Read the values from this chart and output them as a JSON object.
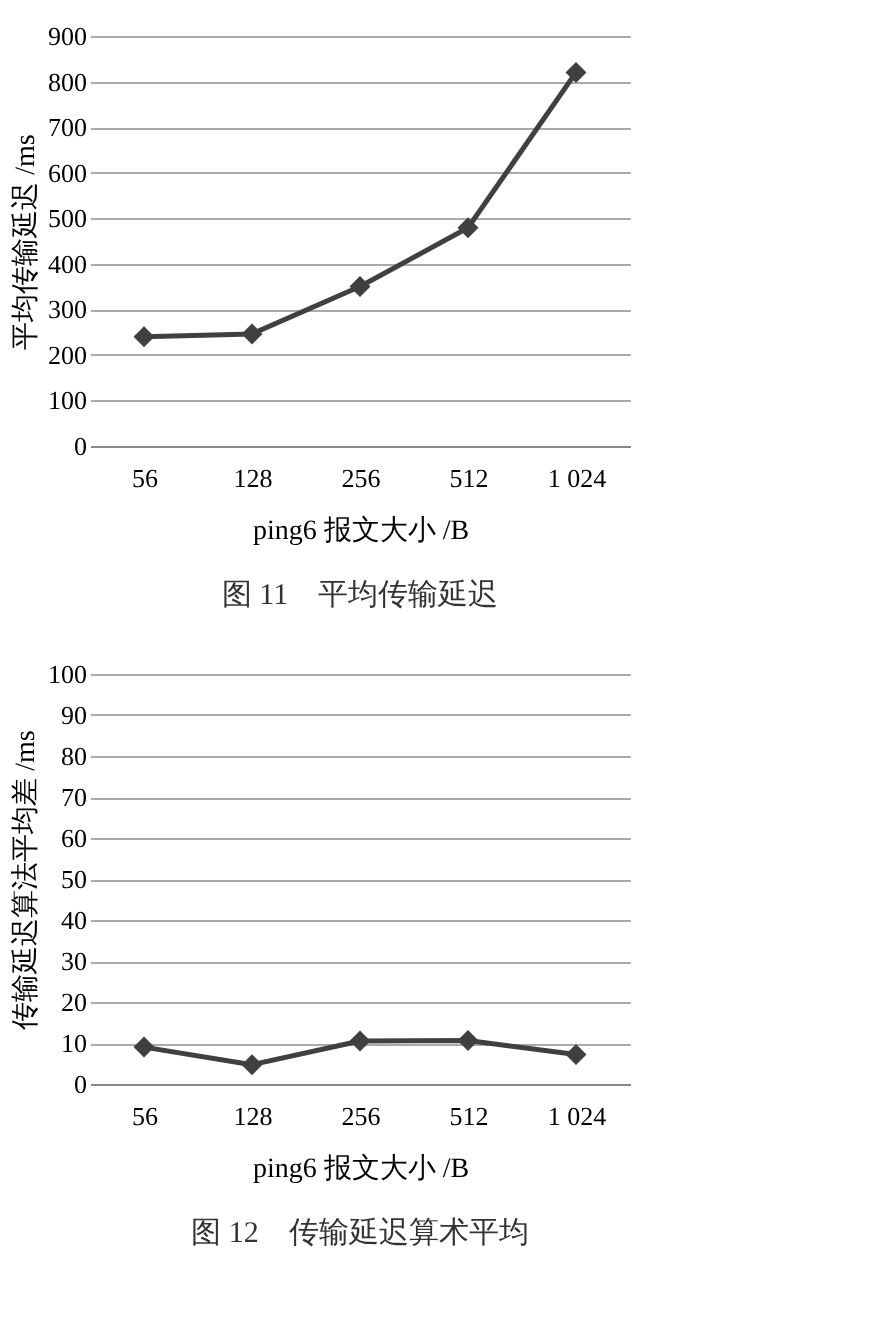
{
  "chart_data": [
    {
      "type": "line",
      "title": "图 11　平均传输延迟",
      "xlabel": "ping6 报文大小  /B",
      "ylabel": "平均传输延迟  /ms",
      "categories": [
        "56",
        "128",
        "256",
        "512",
        "1 024"
      ],
      "series": [
        {
          "color": "#404040",
          "values": [
            240,
            246,
            350,
            479,
            820
          ]
        }
      ],
      "ylim": [
        0,
        900
      ],
      "yticks": [
        0,
        100,
        200,
        300,
        400,
        500,
        600,
        700,
        800,
        900
      ],
      "grid": "y",
      "marker": "diamond",
      "line_style": "solid"
    },
    {
      "type": "line",
      "title": "图 12　传输延迟算术平均",
      "xlabel": "ping6 报文大小  /B",
      "ylabel": "传输延迟算法平均差  /ms",
      "categories": [
        "56",
        "128",
        "256",
        "512",
        "1 024"
      ],
      "series": [
        {
          "color": "#404040",
          "values": [
            9,
            4.7,
            10.5,
            10.6,
            7.2
          ]
        }
      ],
      "ylim": [
        0,
        100
      ],
      "yticks": [
        0,
        10,
        20,
        30,
        40,
        50,
        60,
        70,
        80,
        90,
        100
      ],
      "grid": "y",
      "marker": "diamond",
      "line_style": "solid"
    }
  ]
}
